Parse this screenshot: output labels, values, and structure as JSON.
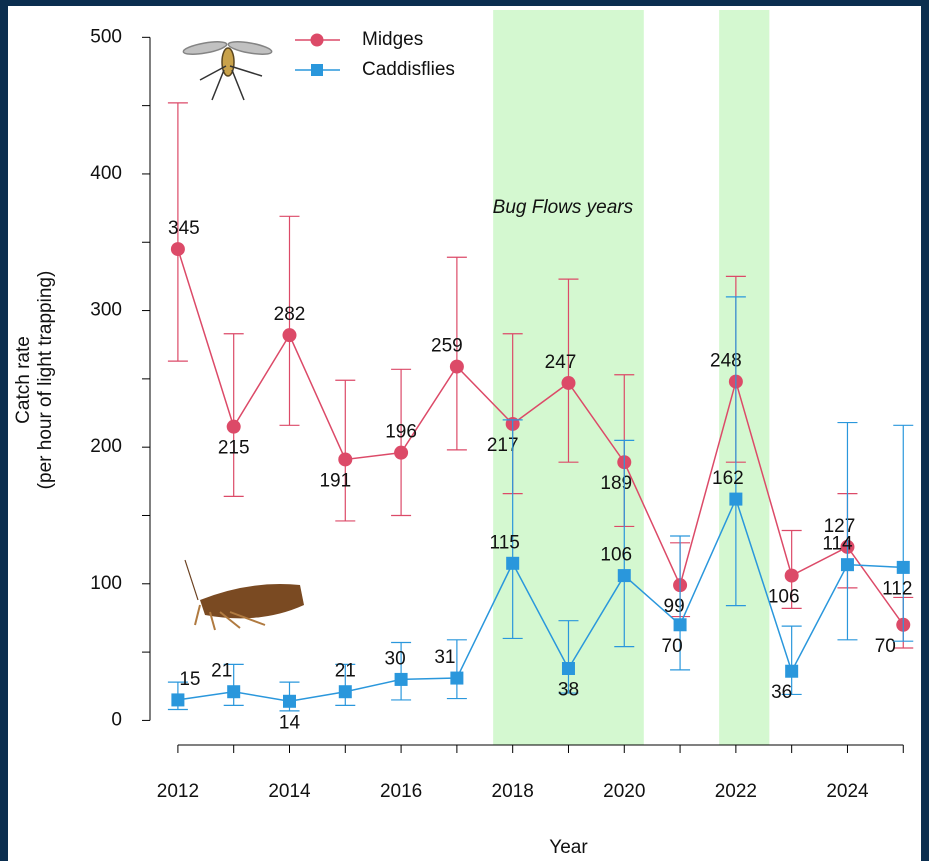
{
  "chart_data": {
    "type": "line",
    "x_label": "Year",
    "y_label": [
      "Catch rate",
      "(per hour of light trapping)"
    ],
    "annotation": "Bug Flows years",
    "shaded_spans": [
      [
        2017.65,
        2020.35
      ],
      [
        21.7,
        22.6
      ]
    ],
    "x": [
      2012,
      2013,
      2014,
      2015,
      2016,
      2017,
      2018,
      2019,
      2020,
      2021,
      2022,
      2023,
      2024,
      2025
    ],
    "series": [
      {
        "name": "Midges",
        "color": "#dc4a68",
        "marker": "circle",
        "values": [
          345,
          215,
          282,
          191,
          196,
          259,
          217,
          247,
          189,
          99,
          248,
          106,
          127,
          70
        ],
        "lower": [
          263,
          164,
          216,
          146,
          150,
          198,
          166,
          189,
          142,
          76,
          189,
          82,
          97,
          53
        ],
        "upper": [
          452,
          283,
          369,
          249,
          257,
          339,
          283,
          323,
          253,
          130,
          325,
          139,
          166,
          90
        ]
      },
      {
        "name": "Caddisflies",
        "color": "#2a97dc",
        "marker": "square",
        "values": [
          15,
          21,
          14,
          21,
          30,
          31,
          115,
          38,
          106,
          70,
          162,
          36,
          114,
          112
        ],
        "lower": [
          8,
          11,
          7,
          11,
          15,
          16,
          60,
          20,
          54,
          37,
          84,
          19,
          59,
          58
        ],
        "upper": [
          28,
          41,
          28,
          41,
          57,
          59,
          220,
          73,
          205,
          135,
          310,
          69,
          218,
          216
        ]
      }
    ],
    "xlim": [
      2011.5,
      2025.3
    ],
    "xticks": [
      2012,
      2014,
      2016,
      2018,
      2020,
      2022,
      2024
    ],
    "x_minor_ticks": [
      2013,
      2015,
      2017,
      2019,
      2021,
      2023,
      2025
    ],
    "ylim": [
      -18,
      520
    ],
    "yticks": [
      0,
      100,
      200,
      300,
      400,
      500
    ],
    "y_minor_ticks": [
      50,
      150,
      250,
      350,
      450
    ],
    "shade_color": "#d4f8d0",
    "legend": "top"
  }
}
